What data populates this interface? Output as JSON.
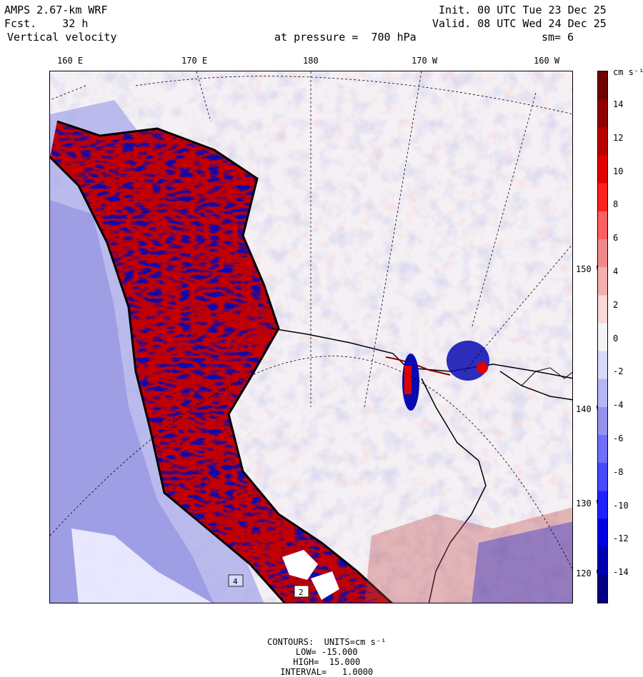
{
  "header": {
    "model": "AMPS 2.67-km WRF",
    "forecast": "Fcst.    32 h",
    "field": "Vertical velocity",
    "init": "Init. 00 UTC Tue 23 Dec 25",
    "valid": "Valid. 08 UTC Wed 24 Dec 25",
    "level": "at pressure =  700 hPa",
    "smooth": "sm= 6"
  },
  "lon_labels": [
    "160 E",
    "170 E",
    "180",
    "170 W",
    "160 W"
  ],
  "lat_labels": [
    "150 W",
    "140 W",
    "130 W",
    "120 W"
  ],
  "colorbar": {
    "units": "cm s⁻¹",
    "ticks": [
      "14",
      "12",
      "10",
      "8",
      "6",
      "4",
      "2",
      "0",
      "-2",
      "-4",
      "-6",
      "-8",
      "-10",
      "-12",
      "-14"
    ],
    "colors": [
      "#000080",
      "#0000b0",
      "#0000e0",
      "#2020ff",
      "#4848ff",
      "#6e6eff",
      "#9494ee",
      "#b6b6f4",
      "#d8d8fa",
      "#f4f4f4",
      "#fad8d8",
      "#f4b0b0",
      "#f08a8a",
      "#ff6060",
      "#ff2020",
      "#e00000",
      "#b80000",
      "#900000",
      "#700000"
    ]
  },
  "map_regions": {
    "background": "#f4f0f4",
    "weak_blue": "#c8c8f0",
    "strong_blue": "#0a0ab0",
    "strong_red": "#8a0000",
    "weak_red": "#f8c8c8"
  },
  "markers": [
    "4",
    "2"
  ],
  "footer": {
    "contours": "CONTOURS:  UNITS=cm s⁻¹",
    "low": "LOW= -15.000",
    "high": "HIGH=  15.000",
    "interval": "INTERVAL=   1.0000"
  }
}
